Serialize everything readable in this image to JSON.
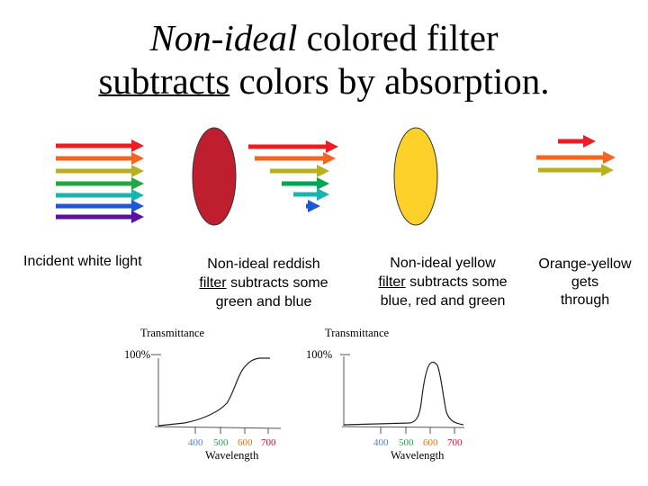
{
  "title": {
    "line1_em": "Non-ideal",
    "line1_rest": " colored filter",
    "line2_u": "subtracts",
    "line2_rest": " colors by absorption."
  },
  "colors": {
    "red": "#ee1c24",
    "orange": "#f26522",
    "olive": "#b5b21e",
    "green": "#24a647",
    "darkgreen": "#00a651",
    "teal": "#17b5b0",
    "blue": "#1f57d6",
    "purple": "#5b0fa5",
    "red_filter": "#be1e2d",
    "yellow_filter": "#fdd12a",
    "tick_400": "#4f86c6",
    "tick_500": "#2e9e4f",
    "tick_600": "#e8741c",
    "tick_700": "#c8102e"
  },
  "captions": {
    "incident": "Incident white light",
    "reddish_line1": "Non-ideal reddish",
    "reddish_line2_u": "filter",
    "reddish_line2_rest": " subtracts some",
    "reddish_line3": "green and blue",
    "yellow_line1": "Non-ideal yellow",
    "yellow_line2_u": "filter",
    "yellow_line2_rest": " subtracts some",
    "yellow_line3": "blue, red and green",
    "output_line1": "Orange-yellow",
    "output_line2": "gets",
    "output_line3": "through"
  },
  "plots": [
    {
      "ylabel": "Transmittance",
      "ymax_label": "100%",
      "xlabel": "Wavelength",
      "ticks": [
        "400",
        "500",
        "600",
        "700"
      ],
      "curve": "reddish"
    },
    {
      "ylabel": "Transmittance",
      "ymax_label": "100%",
      "xlabel": "Wavelength",
      "ticks": [
        "400",
        "500",
        "600",
        "700"
      ],
      "curve": "yellow"
    }
  ]
}
